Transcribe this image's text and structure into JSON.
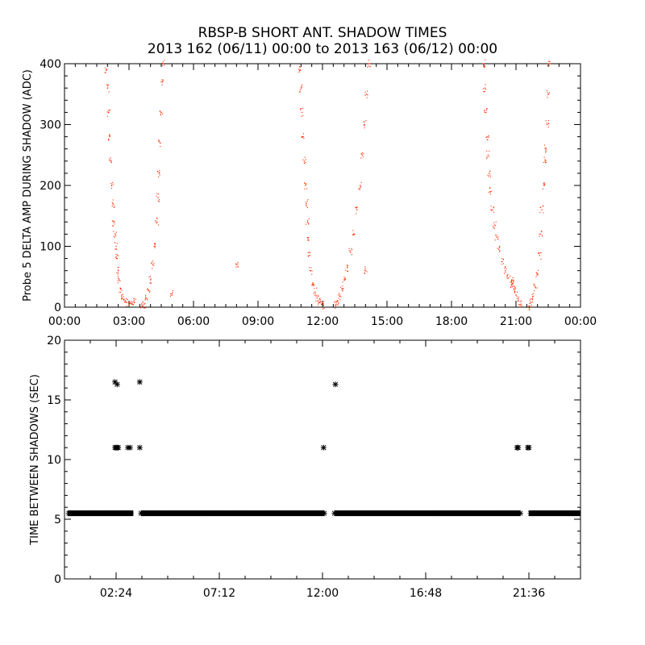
{
  "title_line1": "RBSP-B SHORT ANT. SHADOW TIMES",
  "title_line2": "2013 162 (06/11) 00:00 to 2013 163 (06/12) 00:00",
  "colors": {
    "top_points": "#ff2a00",
    "bottom_points": "#000000",
    "axes": "#000000",
    "background": "#ffffff"
  },
  "chart_data": [
    {
      "type": "scatter",
      "ylabel": "Probe 5 DELTA AMP DURING SHADOW (ADC)",
      "xlim_hours": [
        0,
        24
      ],
      "ylim": [
        0,
        400
      ],
      "x_tick_labels": [
        "00:00",
        "03:00",
        "06:00",
        "09:00",
        "12:00",
        "15:00",
        "18:00",
        "21:00",
        "00:00"
      ],
      "y_tick_labels": [
        "0",
        "100",
        "200",
        "300",
        "400"
      ],
      "grid": false,
      "marker": "dot",
      "color": "#ff2a00",
      "series": [
        {
          "points_hours_adc": [
            [
              1.95,
              390
            ],
            [
              2.0,
              360
            ],
            [
              2.05,
              320
            ],
            [
              2.1,
              280
            ],
            [
              2.15,
              240
            ],
            [
              2.2,
              200
            ],
            [
              2.25,
              170
            ],
            [
              2.3,
              140
            ],
            [
              2.35,
              120
            ],
            [
              2.4,
              100
            ],
            [
              2.45,
              80
            ],
            [
              2.5,
              60
            ],
            [
              2.55,
              45
            ],
            [
              2.6,
              30
            ],
            [
              2.65,
              20
            ],
            [
              2.75,
              12
            ],
            [
              2.9,
              8
            ],
            [
              3.05,
              6
            ],
            [
              3.15,
              5
            ],
            [
              3.25,
              8
            ],
            [
              3.6,
              2
            ],
            [
              3.7,
              5
            ],
            [
              3.8,
              15
            ],
            [
              3.9,
              28
            ],
            [
              4.0,
              45
            ],
            [
              4.1,
              70
            ],
            [
              4.2,
              100
            ],
            [
              4.3,
              140
            ],
            [
              4.35,
              180
            ],
            [
              4.4,
              220
            ],
            [
              4.45,
              270
            ],
            [
              4.5,
              320
            ],
            [
              4.55,
              370
            ],
            [
              4.6,
              400
            ],
            [
              5.0,
              22
            ],
            [
              8.0,
              70
            ],
            [
              10.95,
              390
            ],
            [
              11.0,
              360
            ],
            [
              11.05,
              320
            ],
            [
              11.1,
              280
            ],
            [
              11.15,
              240
            ],
            [
              11.2,
              200
            ],
            [
              11.25,
              170
            ],
            [
              11.3,
              140
            ],
            [
              11.35,
              110
            ],
            [
              11.4,
              85
            ],
            [
              11.45,
              60
            ],
            [
              11.55,
              40
            ],
            [
              11.65,
              25
            ],
            [
              11.75,
              15
            ],
            [
              11.85,
              8
            ],
            [
              11.95,
              5
            ],
            [
              12.05,
              3
            ],
            [
              12.6,
              4
            ],
            [
              12.7,
              10
            ],
            [
              12.8,
              18
            ],
            [
              12.9,
              30
            ],
            [
              13.0,
              45
            ],
            [
              13.15,
              65
            ],
            [
              13.3,
              90
            ],
            [
              13.45,
              120
            ],
            [
              13.6,
              160
            ],
            [
              13.75,
              200
            ],
            [
              13.85,
              250
            ],
            [
              13.95,
              300
            ],
            [
              14.05,
              350
            ],
            [
              14.15,
              400
            ],
            [
              14.0,
              60
            ],
            [
              19.5,
              400
            ],
            [
              19.55,
              360
            ],
            [
              19.6,
              320
            ],
            [
              19.65,
              280
            ],
            [
              19.7,
              250
            ],
            [
              19.75,
              220
            ],
            [
              19.8,
              190
            ],
            [
              19.9,
              160
            ],
            [
              20.0,
              135
            ],
            [
              20.1,
              115
            ],
            [
              20.2,
              95
            ],
            [
              20.35,
              75
            ],
            [
              20.5,
              60
            ],
            [
              20.65,
              48
            ],
            [
              20.8,
              38
            ],
            [
              20.9,
              30
            ],
            [
              21.0,
              20
            ],
            [
              21.1,
              10
            ],
            [
              21.2,
              4
            ],
            [
              20.8,
              45
            ],
            [
              20.85,
              38
            ],
            [
              21.6,
              2
            ],
            [
              21.7,
              8
            ],
            [
              21.8,
              18
            ],
            [
              21.9,
              32
            ],
            [
              22.0,
              55
            ],
            [
              22.1,
              85
            ],
            [
              22.15,
              120
            ],
            [
              22.2,
              160
            ],
            [
              22.3,
              200
            ],
            [
              22.35,
              240
            ],
            [
              22.4,
              260
            ],
            [
              22.45,
              300
            ],
            [
              22.5,
              350
            ],
            [
              22.55,
              400
            ]
          ]
        }
      ]
    },
    {
      "type": "scatter",
      "ylabel": "TIME BETWEEN SHADOWS (SEC)",
      "xlim_hours": [
        0,
        24
      ],
      "ylim": [
        0,
        20
      ],
      "x_tick_labels": [
        "02:24",
        "07:12",
        "12:00",
        "16:48",
        "21:36"
      ],
      "y_tick_labels": [
        "0",
        "5",
        "10",
        "15",
        "20"
      ],
      "grid": false,
      "marker": "asterisk",
      "color": "#000000",
      "baseline_value": 5.5,
      "baseline_gaps_hours": [
        [
          3.2,
          3.55
        ],
        [
          12.1,
          12.55
        ],
        [
          21.2,
          21.6
        ]
      ],
      "series": [
        {
          "points_hours_sec": [
            [
              2.35,
              11.0
            ],
            [
              2.4,
              11.0
            ],
            [
              2.45,
              11.0
            ],
            [
              2.5,
              11.0
            ],
            [
              2.35,
              16.5
            ],
            [
              2.45,
              16.3
            ],
            [
              2.95,
              11.0
            ],
            [
              3.05,
              11.0
            ],
            [
              3.5,
              16.5
            ],
            [
              3.5,
              11.0
            ],
            [
              12.05,
              11.0
            ],
            [
              12.6,
              16.3
            ],
            [
              21.05,
              11.0
            ],
            [
              21.1,
              11.0
            ],
            [
              21.55,
              11.0
            ],
            [
              21.6,
              11.0
            ]
          ]
        }
      ]
    }
  ]
}
